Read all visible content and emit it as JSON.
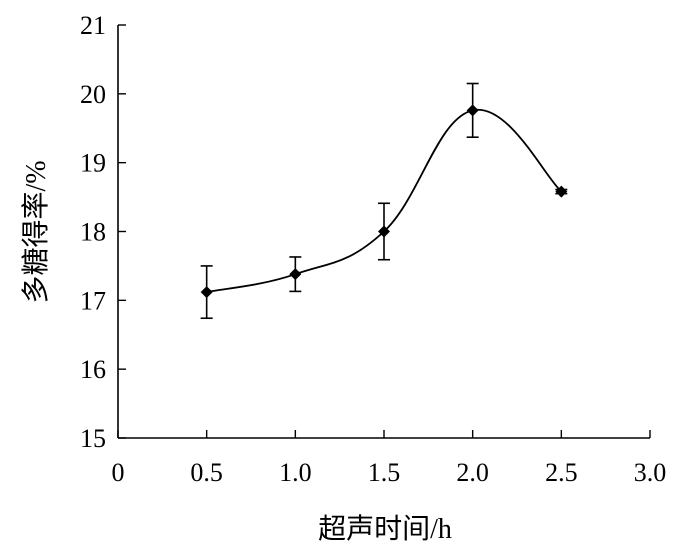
{
  "chart_data": {
    "type": "line",
    "title": "",
    "xlabel": "超声时间/h",
    "ylabel": "多糖得率/%",
    "xlim": [
      0,
      3.0
    ],
    "ylim": [
      15,
      21
    ],
    "xticks": [
      0,
      0.5,
      1.0,
      1.5,
      2.0,
      2.5,
      3.0
    ],
    "xtick_labels": [
      "0",
      "0.5",
      "1.0",
      "1.5",
      "2.0",
      "2.5",
      "3.0"
    ],
    "yticks": [
      15,
      16,
      17,
      18,
      19,
      20,
      21
    ],
    "ytick_labels": [
      "15",
      "16",
      "17",
      "18",
      "19",
      "20",
      "21"
    ],
    "grid": false,
    "legend": "none",
    "smooth": true,
    "series": [
      {
        "x": [
          0.5,
          1.0,
          1.5,
          2.0,
          2.5
        ],
        "y": [
          17.12,
          17.38,
          18.0,
          19.76,
          18.58
        ],
        "error": [
          0.38,
          0.25,
          0.41,
          0.39,
          0.03
        ],
        "marker": "diamond",
        "color": "#000000"
      }
    ]
  }
}
